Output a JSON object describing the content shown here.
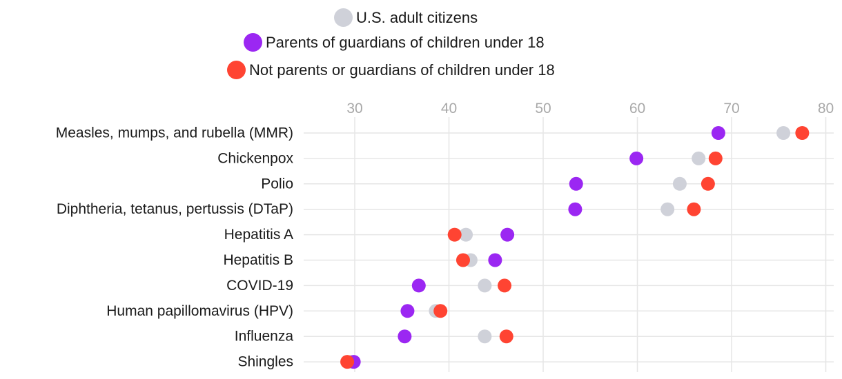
{
  "chart_data": {
    "type": "dot",
    "xlim": [
      25,
      81
    ],
    "x_ticks": [
      30,
      40,
      50,
      60,
      70,
      80
    ],
    "grid": true,
    "legend_position": "top-center",
    "series": [
      {
        "name": "U.S. adult citizens",
        "color": "#cfd1d9",
        "values": [
          75.5,
          66.5,
          64.5,
          63.2,
          41.8,
          42.3,
          43.8,
          38.6,
          43.8,
          29.6
        ]
      },
      {
        "name": "Parents of guardians of children under 18",
        "color": "#9b27f2",
        "values": [
          68.6,
          59.9,
          53.5,
          53.4,
          46.2,
          44.9,
          36.8,
          35.6,
          35.3,
          29.9
        ]
      },
      {
        "name": "Not parents or guardians of children under 18",
        "color": "#ff4432",
        "values": [
          77.5,
          68.3,
          67.5,
          66.0,
          40.6,
          41.5,
          45.9,
          39.1,
          46.1,
          29.2
        ]
      }
    ],
    "categories": [
      "Measles, mumps, and rubella (MMR)",
      "Chickenpox",
      "Polio",
      "Diphtheria, tetanus, pertussis (DTaP)",
      "Hepatitis A",
      "Hepatitis B",
      "COVID-19",
      "Human papillomavirus (HPV)",
      "Influenza",
      "Shingles"
    ]
  }
}
